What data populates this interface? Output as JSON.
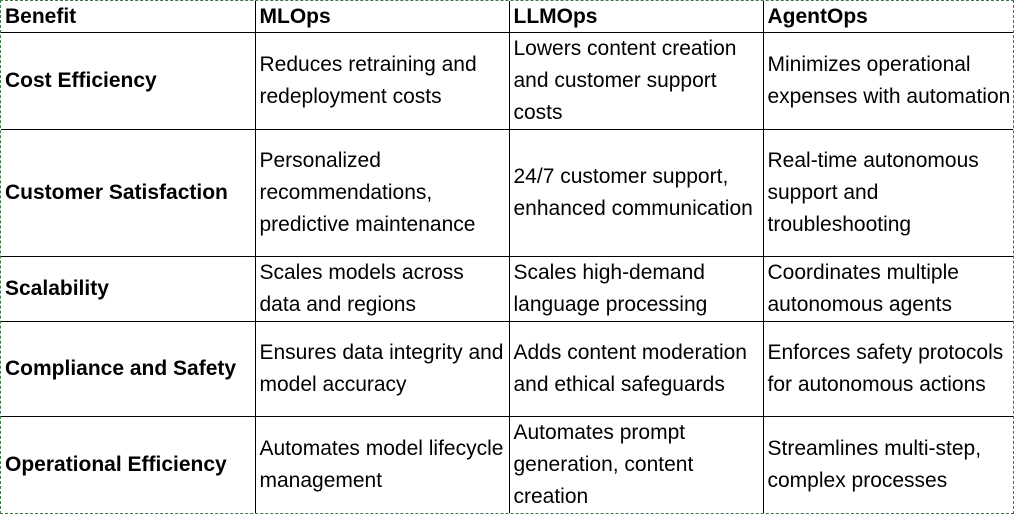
{
  "table": {
    "headers": [
      "Benefit",
      "MLOps",
      "LLMOps",
      "AgentOps"
    ],
    "rows": [
      {
        "benefit": "Cost Efficiency",
        "mlops": "Reduces retraining and redeployment costs",
        "llmops": "Lowers content creation and customer support costs",
        "agentops": "Minimizes operational expenses with automation"
      },
      {
        "benefit": "Customer Satisfaction",
        "mlops": "Personalized recommendations, predictive maintenance",
        "llmops": "24/7 customer support, enhanced communication",
        "agentops": "Real-time autonomous support and troubleshooting"
      },
      {
        "benefit": "Scalability",
        "mlops": "Scales models across data and regions",
        "llmops": "Scales high-demand language processing",
        "agentops": "Coordinates multiple autonomous agents"
      },
      {
        "benefit": "Compliance and Safety",
        "mlops": "Ensures data integrity and model accuracy",
        "llmops": "Adds content moderation and ethical safeguards",
        "agentops": "Enforces safety protocols for autonomous actions"
      },
      {
        "benefit": "Operational Efficiency",
        "mlops": "Automates model lifecycle management",
        "llmops": "Automates prompt generation, content creation",
        "agentops": "Streamlines multi-step, complex processes"
      }
    ]
  }
}
